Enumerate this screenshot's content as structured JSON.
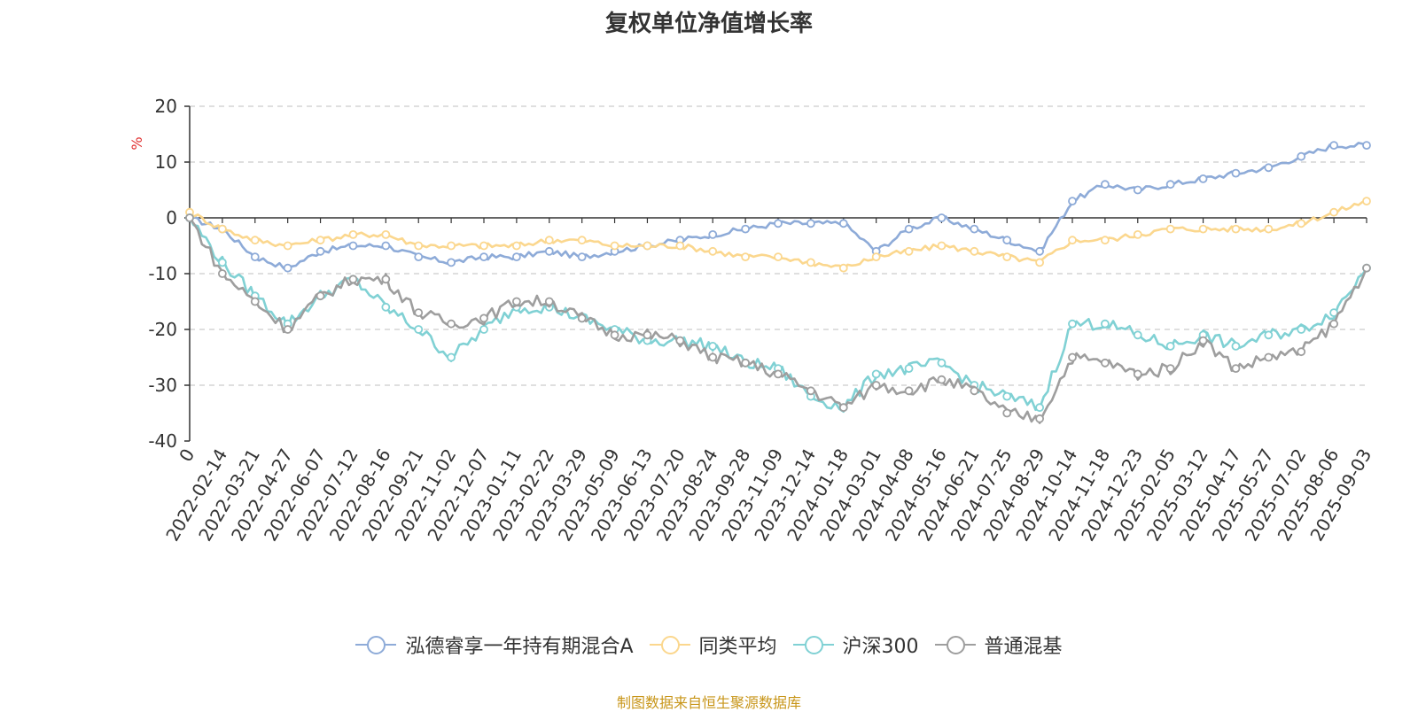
{
  "chart_data": {
    "type": "line",
    "title": "复权单位净值增长率",
    "ylabel": "%",
    "ylim": [
      -40,
      20
    ],
    "yticks": [
      -40,
      -30,
      -20,
      -10,
      0,
      10,
      20
    ],
    "grid": true,
    "legend_position": "bottom",
    "x_ticks": [
      "0",
      "2022-02-14",
      "2022-03-21",
      "2022-04-27",
      "2022-06-07",
      "2022-07-12",
      "2022-08-16",
      "2022-09-21",
      "2022-11-02",
      "2022-12-07",
      "2023-01-11",
      "2023-02-22",
      "2023-03-29",
      "2023-05-09",
      "2023-06-13",
      "2023-07-20",
      "2023-08-24",
      "2023-09-28",
      "2023-11-09",
      "2023-12-14",
      "2024-01-18",
      "2024-03-01",
      "2024-04-08",
      "2024-05-16",
      "2024-06-21",
      "2024-07-25",
      "2024-08-29",
      "2024-10-14",
      "2024-11-18",
      "2024-12-23",
      "2025-02-05",
      "2025-03-12",
      "2025-04-17",
      "2025-05-27",
      "2025-07-02",
      "2025-08-06",
      "2025-09-03"
    ],
    "series": [
      {
        "name": "泓德睿享一年持有期混合A",
        "color": "#8eabd8",
        "values": [
          0,
          -2,
          -7,
          -9,
          -6,
          -5,
          -5,
          -7,
          -8,
          -7,
          -7,
          -6,
          -7,
          -6,
          -5,
          -4,
          -3,
          -2,
          -1,
          -1,
          -1,
          -6,
          -2,
          0,
          -2,
          -4,
          -6,
          3,
          6,
          5,
          6,
          7,
          8,
          9,
          11,
          13,
          13
        ]
      },
      {
        "name": "同类平均",
        "color": "#fbd78e",
        "values": [
          1,
          -2,
          -4,
          -5,
          -4,
          -3,
          -3,
          -5,
          -5,
          -5,
          -5,
          -4,
          -4,
          -5,
          -5,
          -5,
          -6,
          -7,
          -7,
          -8,
          -9,
          -7,
          -6,
          -5,
          -6,
          -7,
          -8,
          -4,
          -4,
          -3,
          -2,
          -2,
          -2,
          -2,
          -1,
          1,
          3
        ]
      },
      {
        "name": "沪深300",
        "color": "#80d1d4",
        "values": [
          0,
          -8,
          -14,
          -19,
          -14,
          -11,
          -16,
          -20,
          -25,
          -20,
          -16,
          -16,
          -18,
          -20,
          -22,
          -22,
          -23,
          -26,
          -27,
          -32,
          -34,
          -28,
          -27,
          -26,
          -30,
          -32,
          -34,
          -19,
          -19,
          -21,
          -23,
          -21,
          -23,
          -21,
          -20,
          -17,
          -9
        ]
      },
      {
        "name": "普通混基",
        "color": "#9e9e9e",
        "values": [
          0,
          -10,
          -15,
          -20,
          -14,
          -11,
          -11,
          -17,
          -19,
          -18,
          -15,
          -15,
          -18,
          -21,
          -21,
          -22,
          -25,
          -26,
          -28,
          -31,
          -34,
          -30,
          -31,
          -29,
          -31,
          -35,
          -36,
          -25,
          -26,
          -28,
          -27,
          -22,
          -27,
          -25,
          -24,
          -19,
          -9
        ]
      }
    ]
  },
  "source_note": "制图数据来自恒生聚源数据库"
}
